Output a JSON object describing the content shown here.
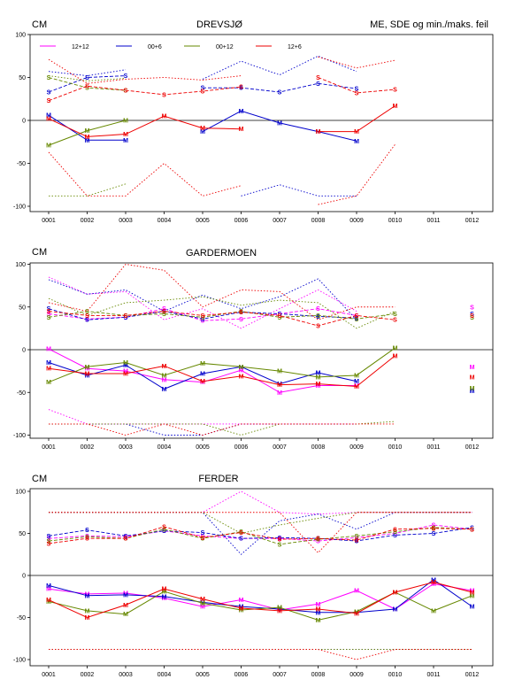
{
  "header": {
    "unit_label": "CM",
    "right_title": "ME, SDE og min./maks. feil"
  },
  "legend": [
    {
      "label": "12+12",
      "color": "#ff00ff"
    },
    {
      "label": "00+6",
      "color": "#0000cc"
    },
    {
      "label": "00+12",
      "color": "#668800"
    },
    {
      "label": "12+6",
      "color": "#ee0000"
    }
  ],
  "chart_data": [
    {
      "type": "line",
      "title": "DREVSJØ",
      "ylabel": "CM",
      "categories": [
        "0001",
        "0002",
        "0003",
        "0004",
        "0005",
        "0006",
        "0007",
        "0008",
        "0009",
        "0010",
        "0011",
        "0012"
      ],
      "ylim": [
        -100,
        100
      ],
      "yticks": [
        -100,
        -50,
        0,
        50,
        100
      ],
      "series": [
        {
          "name": "12+12",
          "color": "#ff00ff",
          "me": [],
          "sde": [],
          "max": [],
          "min": []
        },
        {
          "name": "00+6",
          "color": "#0000cc",
          "me": [
            6,
            -23,
            -23,
            null,
            -13,
            11,
            -3,
            -13,
            -24,
            null,
            null,
            null
          ],
          "sde": [
            33,
            50,
            52,
            null,
            38,
            38,
            33,
            43,
            37,
            null,
            null,
            null
          ],
          "max": [
            57,
            52,
            59,
            null,
            48,
            69,
            53,
            75,
            57,
            null,
            null,
            null
          ],
          "min": [
            null,
            null,
            null,
            null,
            null,
            -88,
            -75,
            -88,
            -88,
            null,
            null,
            null
          ]
        },
        {
          "name": "00+12",
          "color": "#668800",
          "me": [
            -29,
            -12,
            0,
            null,
            null,
            null,
            null,
            null,
            null,
            null,
            null,
            null
          ],
          "sde": [
            50,
            38,
            35,
            null,
            null,
            null,
            null,
            null,
            null,
            null,
            null,
            null
          ],
          "max": [
            52,
            46,
            49,
            null,
            null,
            null,
            null,
            null,
            null,
            null,
            null,
            null
          ],
          "min": [
            -88,
            -88,
            -74,
            null,
            null,
            null,
            null,
            null,
            null,
            null,
            null,
            null
          ]
        },
        {
          "name": "12+6",
          "color": "#ee0000",
          "me": [
            2,
            -19,
            -16,
            5,
            -9,
            -10,
            null,
            -13,
            -13,
            17,
            null,
            null
          ],
          "sde": [
            23,
            40,
            35,
            30,
            34,
            39,
            null,
            50,
            32,
            36,
            null,
            null
          ],
          "max": [
            71,
            43,
            48,
            50,
            47,
            52,
            null,
            74,
            61,
            70,
            null,
            null
          ],
          "min": [
            -37,
            -88,
            -88,
            -50,
            -88,
            -76,
            null,
            -98,
            -88,
            -28,
            null,
            null
          ]
        }
      ]
    },
    {
      "type": "line",
      "title": "GARDERMOEN",
      "ylabel": "CM",
      "categories": [
        "0001",
        "0002",
        "0003",
        "0004",
        "0005",
        "0006",
        "0007",
        "0008",
        "0009",
        "0010",
        "0011",
        "0012"
      ],
      "ylim": [
        -100,
        100
      ],
      "yticks": [
        -100,
        -50,
        0,
        50,
        100
      ],
      "series": [
        {
          "name": "12+12",
          "color": "#ff00ff",
          "me": [
            1,
            -22,
            -25,
            -35,
            -38,
            -24,
            -50,
            -42,
            -42,
            null,
            null,
            -20
          ],
          "sde": [
            42,
            36,
            38,
            48,
            34,
            36,
            42,
            48,
            40,
            null,
            null,
            50
          ],
          "max": [
            85,
            65,
            68,
            35,
            48,
            25,
            48,
            70,
            45,
            null,
            null,
            null
          ],
          "min": [
            -70,
            -87,
            -87,
            -87,
            -87,
            -87,
            -87,
            -87,
            -87,
            null,
            null,
            null
          ]
        },
        {
          "name": "00+6",
          "color": "#0000cc",
          "me": [
            -15,
            -30,
            -18,
            -46,
            -28,
            -20,
            -40,
            -27,
            -37,
            null,
            null,
            -48
          ],
          "sde": [
            48,
            35,
            38,
            45,
            36,
            44,
            42,
            39,
            37,
            null,
            null,
            42
          ],
          "max": [
            82,
            65,
            70,
            45,
            64,
            48,
            62,
            83,
            35,
            null,
            null,
            null
          ],
          "min": [
            -87,
            -87,
            -87,
            -100,
            -100,
            -87,
            -87,
            -87,
            -87,
            null,
            null,
            null
          ]
        },
        {
          "name": "00+12",
          "color": "#668800",
          "me": [
            -38,
            -20,
            -15,
            -30,
            -16,
            -20,
            -25,
            -32,
            -30,
            2,
            null,
            -45
          ],
          "sde": [
            38,
            45,
            40,
            42,
            38,
            45,
            38,
            40,
            36,
            42,
            null,
            38
          ],
          "max": [
            60,
            40,
            55,
            58,
            62,
            52,
            58,
            55,
            25,
            45,
            null,
            null
          ],
          "min": [
            -87,
            -87,
            -87,
            -87,
            -87,
            -100,
            -87,
            -87,
            -87,
            -84,
            null,
            null
          ]
        },
        {
          "name": "12+6",
          "color": "#ee0000",
          "me": [
            -22,
            -28,
            -28,
            -19,
            -37,
            -31,
            -41,
            -40,
            -43,
            -7,
            null,
            -32
          ],
          "sde": [
            45,
            40,
            40,
            45,
            40,
            44,
            40,
            28,
            40,
            35,
            null,
            40
          ],
          "max": [
            55,
            45,
            100,
            93,
            50,
            70,
            68,
            35,
            50,
            50,
            null,
            null
          ],
          "min": [
            -87,
            -87,
            -100,
            -87,
            -100,
            -87,
            -87,
            -87,
            -87,
            -87,
            null,
            null
          ]
        }
      ]
    },
    {
      "type": "line",
      "title": "FERDER",
      "ylabel": "CM",
      "categories": [
        "0001",
        "0002",
        "0003",
        "0004",
        "0005",
        "0006",
        "0007",
        "0008",
        "0009",
        "0010",
        "0011",
        "0012"
      ],
      "ylim": [
        -100,
        100
      ],
      "yticks": [
        -100,
        -50,
        0,
        50,
        100
      ],
      "series": [
        {
          "name": "12+12",
          "color": "#ff00ff",
          "me": [
            -16,
            -22,
            -21,
            -27,
            -37,
            -29,
            -41,
            -34,
            -18,
            -40,
            -10,
            -18
          ],
          "sde": [
            44,
            47,
            46,
            53,
            47,
            44,
            44,
            41,
            45,
            50,
            60,
            55
          ],
          "max": [
            75,
            75,
            75,
            75,
            75,
            100,
            75,
            73,
            75,
            75,
            75,
            75
          ],
          "min": [
            -88,
            -88,
            -88,
            -88,
            -88,
            -88,
            -88,
            -88,
            -88,
            -88,
            -88,
            -88
          ]
        },
        {
          "name": "00+6",
          "color": "#0000cc",
          "me": [
            -12,
            -24,
            -23,
            -25,
            -32,
            -37,
            -40,
            -44,
            -44,
            -40,
            -5,
            -37
          ],
          "sde": [
            47,
            54,
            47,
            53,
            51,
            44,
            45,
            44,
            41,
            48,
            50,
            57
          ],
          "max": [
            75,
            75,
            75,
            75,
            75,
            25,
            65,
            73,
            55,
            75,
            75,
            75
          ],
          "min": [
            -88,
            -88,
            -88,
            -88,
            -88,
            -88,
            -88,
            -88,
            -88,
            -88,
            -88,
            -88
          ]
        },
        {
          "name": "00+12",
          "color": "#668800",
          "me": [
            -31,
            -42,
            -46,
            -19,
            -33,
            -41,
            -38,
            -53,
            -43,
            -20,
            -42,
            -24
          ],
          "sde": [
            41,
            46,
            44,
            55,
            44,
            52,
            37,
            43,
            47,
            52,
            57,
            55
          ],
          "max": [
            75,
            75,
            75,
            75,
            75,
            50,
            60,
            68,
            75,
            75,
            75,
            75
          ],
          "min": [
            -88,
            -88,
            -88,
            -88,
            -88,
            -88,
            -88,
            -88,
            -88,
            -88,
            -88,
            -88
          ]
        },
        {
          "name": "12+6",
          "color": "#ee0000",
          "me": [
            -29,
            -50,
            -35,
            -16,
            -28,
            -39,
            -42,
            -40,
            -45,
            -20,
            -8,
            -20
          ],
          "sde": [
            38,
            44,
            44,
            58,
            45,
            51,
            43,
            44,
            42,
            55,
            56,
            55
          ],
          "max": [
            75,
            75,
            75,
            75,
            75,
            75,
            75,
            27,
            75,
            75,
            75,
            75
          ],
          "min": [
            -88,
            -88,
            -88,
            -88,
            -88,
            -88,
            -88,
            -88,
            -100,
            -88,
            -88,
            -88
          ]
        }
      ]
    }
  ]
}
